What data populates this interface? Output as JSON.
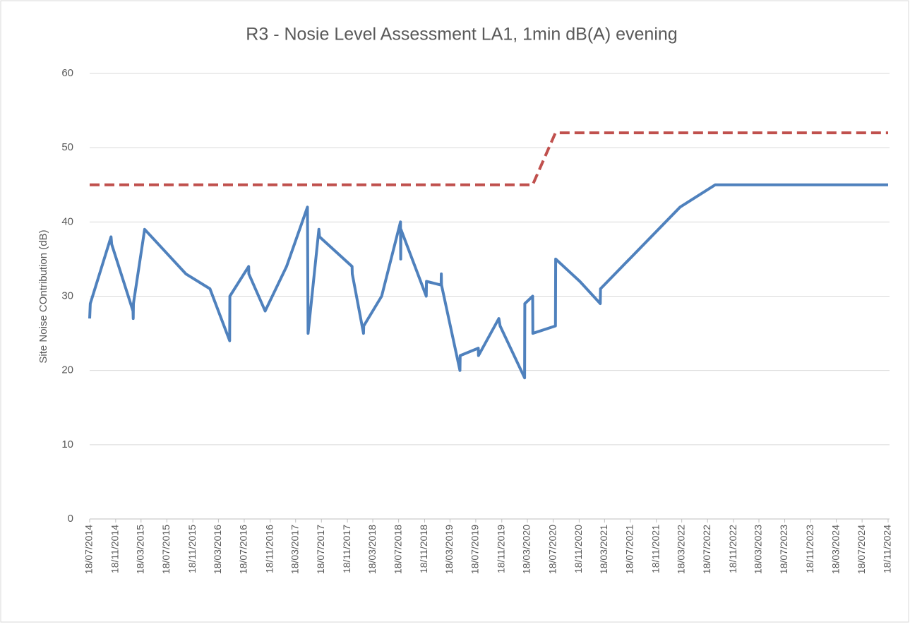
{
  "chart_data": {
    "type": "line",
    "title": "R3 - Nosie Level Assessment LA1, 1min dB(A) evening",
    "ylabel": "Site Noise COntribution (dB)",
    "ylim": [
      0,
      60
    ],
    "yticks": [
      0,
      10,
      20,
      30,
      40,
      50,
      60
    ],
    "xlim": [
      "18/07/2014",
      "18/11/2024"
    ],
    "xticks": [
      "18/07/2014",
      "18/11/2014",
      "18/03/2015",
      "18/07/2015",
      "18/11/2015",
      "18/03/2016",
      "18/07/2016",
      "18/11/2016",
      "18/03/2017",
      "18/07/2017",
      "18/11/2017",
      "18/03/2018",
      "18/07/2018",
      "18/11/2018",
      "18/03/2019",
      "18/07/2019",
      "18/11/2019",
      "18/03/2020",
      "18/07/2020",
      "18/11/2020",
      "18/03/2021",
      "18/07/2021",
      "18/11/2021",
      "18/03/2022",
      "18/07/2022",
      "18/11/2022",
      "18/03/2023",
      "18/07/2023",
      "18/11/2023",
      "18/03/2024",
      "18/07/2024",
      "18/11/2024"
    ],
    "grid": true,
    "series": [
      {
        "color": "#4f81bd",
        "dashed": false,
        "x": [
          "18/07/2014",
          "21/07/2014",
          "27/10/2014",
          "30/10/2014",
          "08/02/2015",
          "09/02/2015",
          "10/02/2015",
          "04/04/2015",
          "16/10/2015",
          "07/02/2016",
          "10/05/2016",
          "11/05/2016",
          "08/08/2016",
          "09/08/2016",
          "25/10/2016",
          "03/02/2017",
          "13/05/2017",
          "16/05/2017",
          "06/07/2017",
          "09/07/2017",
          "10/12/2017",
          "11/12/2017",
          "02/02/2018",
          "03/02/2018",
          "29/04/2018",
          "27/07/2018",
          "28/07/2018",
          "29/07/2018",
          "26/11/2018",
          "27/11/2018",
          "04/02/2019",
          "05/02/2019",
          "06/02/2019",
          "04/05/2019",
          "05/05/2019",
          "30/07/2019",
          "31/07/2019",
          "04/11/2019",
          "10/11/2019",
          "05/03/2020",
          "06/03/2020",
          "12/04/2020",
          "13/04/2020",
          "29/07/2020",
          "30/07/2020",
          "21/11/2020",
          "26/02/2021",
          "27/02/2021",
          "10/03/2022",
          "23/08/2022",
          "18/11/2024"
        ],
        "values": [
          27,
          29,
          38,
          37,
          28,
          27,
          29,
          39,
          33,
          31,
          24,
          30,
          34,
          33,
          28,
          34,
          42,
          25,
          39,
          38,
          34,
          33,
          25,
          26,
          30,
          40,
          35,
          39,
          30,
          32,
          31.5,
          33,
          31.5,
          20,
          22,
          23,
          22,
          27,
          26,
          19,
          29,
          30,
          25,
          26,
          35,
          32,
          29,
          31,
          42,
          45,
          45
        ]
      },
      {
        "color": "#c0504d",
        "dashed": true,
        "x": [
          "18/07/2014",
          "12/04/2020",
          "29/07/2020",
          "18/11/2024"
        ],
        "values": [
          45,
          45,
          52,
          52
        ]
      }
    ]
  }
}
